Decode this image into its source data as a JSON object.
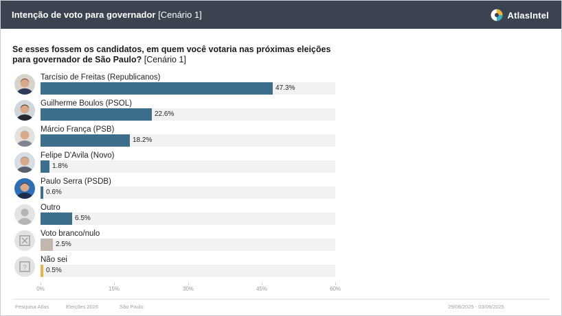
{
  "header": {
    "title_bold": "Intenção de voto para governador",
    "title_rest": " [Cenário 1]",
    "brand": "AtlasIntel"
  },
  "question": {
    "bold": "Se esses fossem os candidatos, em quem você votaria nas próximas eleições para governador de São Paulo?",
    "rest": " [Cenário 1]"
  },
  "colors": {
    "header_bg": "#3b4250",
    "bar_main": "#3d6e8c",
    "bar_blank": "#c4b5ae",
    "bar_unknown": "#e6b34a",
    "track": "#f2f2f2"
  },
  "chart_data": {
    "type": "bar",
    "orientation": "horizontal",
    "categories": [
      "Tarcísio de Freitas (Republicanos)",
      "Guilherme Boulos (PSOL)",
      "Márcio França (PSB)",
      "Felipe D'Avila (Novo)",
      "Paulo Serra (PSDB)",
      "Outro",
      "Voto branco/nulo",
      "Não sei"
    ],
    "values": [
      47.3,
      22.6,
      18.2,
      1.8,
      0.6,
      6.5,
      2.5,
      0.5
    ],
    "value_labels": [
      "47.3%",
      "22.6%",
      "18.2%",
      "1.8%",
      "0.6%",
      "6.5%",
      "2.5%",
      "0.5%"
    ],
    "bar_colors": [
      "#3d6e8c",
      "#3d6e8c",
      "#3d6e8c",
      "#3d6e8c",
      "#3d6e8c",
      "#3d6e8c",
      "#c4b5ae",
      "#e6b34a"
    ],
    "avatars": [
      "photo-tarcisio",
      "photo-boulos",
      "photo-franca",
      "photo-davila",
      "photo-serra",
      "generic-person-icon",
      "blank-vote-icon",
      "question-icon"
    ],
    "xlim": [
      0,
      60
    ],
    "xticks": [
      0,
      15,
      30,
      45,
      60
    ],
    "xtick_labels": [
      "0%",
      "15%",
      "30%",
      "45%",
      "60%"
    ],
    "grid": false,
    "legend": "none"
  },
  "footer": {
    "source": "Pesquisa Atlas",
    "topic": "Eleições 2026",
    "place": "São Paulo",
    "dates": "29/08/2025 - 03/09/2025"
  }
}
